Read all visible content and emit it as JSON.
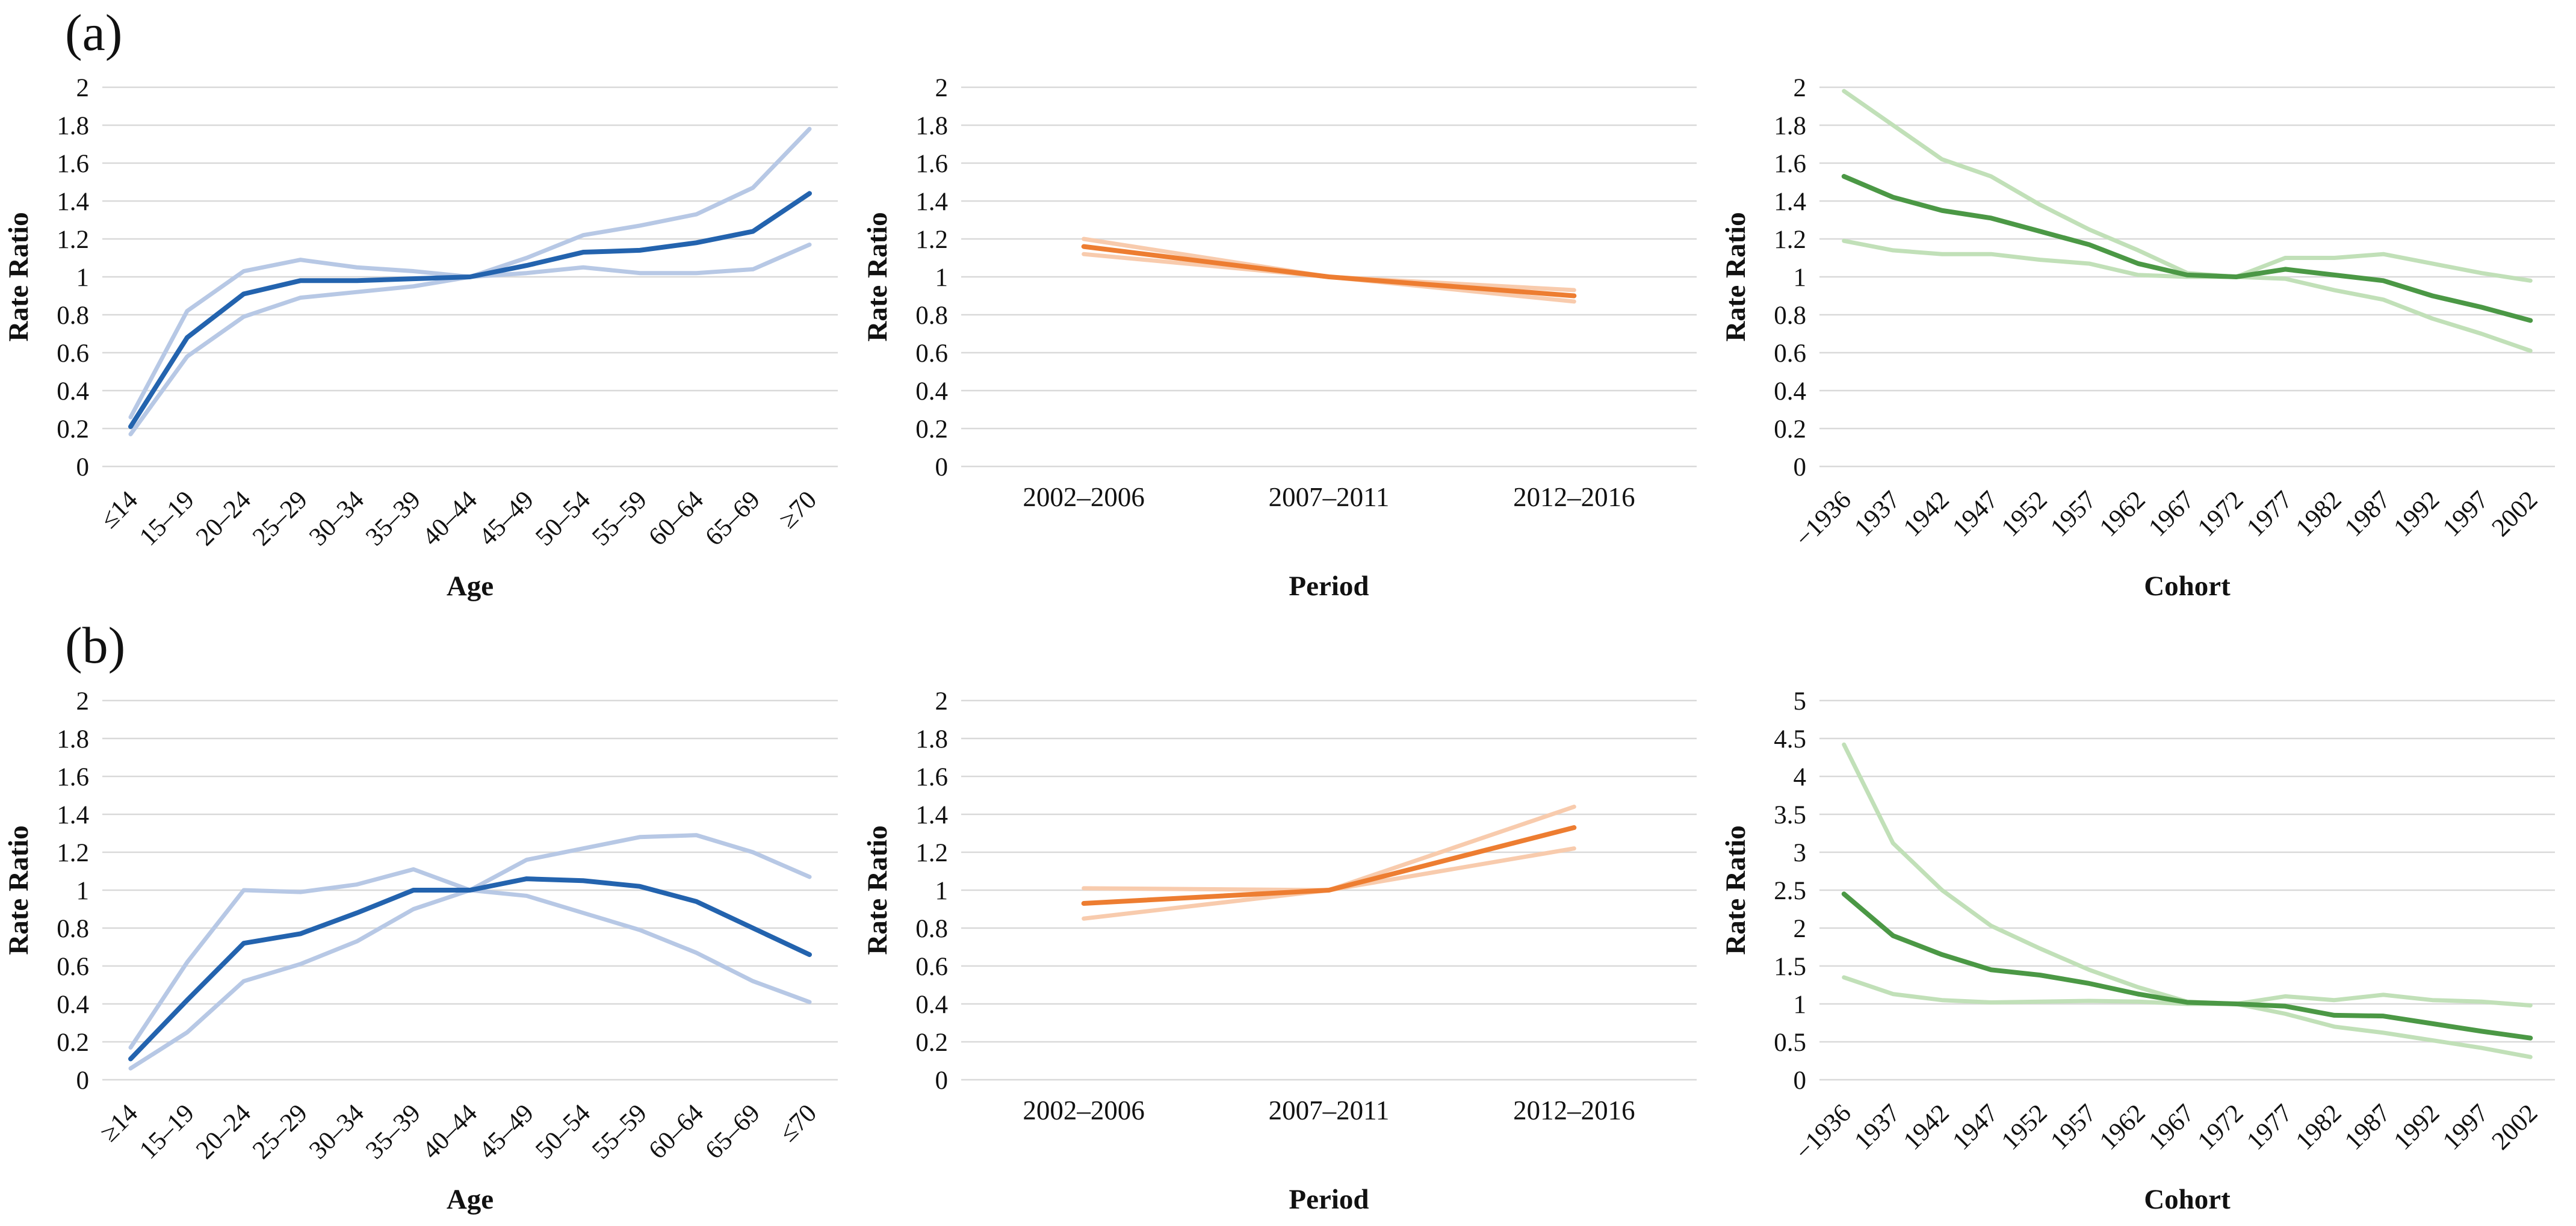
{
  "figure": {
    "panel_a_label": "(a)",
    "panel_b_label": "(b)"
  },
  "colors": {
    "grid": "#D9D9D9",
    "text": "#111111",
    "blue_estimate": "#2363AE",
    "blue_ci": "#B7C8E5",
    "orange_estimate": "#ED7D31",
    "orange_ci": "#F8CBAD",
    "green_estimate": "#4B9845",
    "green_ci": "#C1E0B8"
  },
  "chart_data": [
    {
      "id": "a-age",
      "panel": "a",
      "type": "line",
      "title": "",
      "xlabel": "Age",
      "ylabel": "Rate Ratio",
      "ylim": [
        0,
        2
      ],
      "ytick_labels": [
        "0",
        "0.2",
        "0.4",
        "0.6",
        "0.8",
        "1",
        "1.2",
        "1.4",
        "1.6",
        "1.8",
        "2"
      ],
      "grid": true,
      "legend_position": "none",
      "xtick_rotate": true,
      "categories": [
        "≤14",
        "15–19",
        "20–24",
        "25–29",
        "30–34",
        "35–39",
        "40–44",
        "45–49",
        "50–54",
        "55–59",
        "60–64",
        "65–69",
        "≥70"
      ],
      "palette": {
        "estimate": "#2363AE",
        "ci": "#B7C8E5"
      },
      "series": [
        {
          "name": "upper-ci",
          "role": "ci",
          "values": [
            0.26,
            0.82,
            1.03,
            1.09,
            1.05,
            1.03,
            1.0,
            1.1,
            1.22,
            1.27,
            1.33,
            1.47,
            1.78
          ]
        },
        {
          "name": "lower-ci",
          "role": "ci",
          "values": [
            0.17,
            0.58,
            0.79,
            0.89,
            0.92,
            0.95,
            1.0,
            1.02,
            1.05,
            1.02,
            1.02,
            1.04,
            1.17
          ]
        },
        {
          "name": "estimate",
          "role": "estimate",
          "values": [
            0.21,
            0.68,
            0.91,
            0.98,
            0.98,
            0.99,
            1.0,
            1.06,
            1.13,
            1.14,
            1.18,
            1.24,
            1.44
          ]
        }
      ]
    },
    {
      "id": "a-period",
      "panel": "a",
      "type": "line",
      "title": "",
      "xlabel": "Period",
      "ylabel": "Rate Ratio",
      "ylim": [
        0,
        2
      ],
      "ytick_labels": [
        "0",
        "0.2",
        "0.4",
        "0.6",
        "0.8",
        "1",
        "1.2",
        "1.4",
        "1.6",
        "1.8",
        "2"
      ],
      "grid": true,
      "legend_position": "none",
      "xtick_rotate": false,
      "categories": [
        "2002–2006",
        "2007–2011",
        "2012–2016"
      ],
      "palette": {
        "estimate": "#ED7D31",
        "ci": "#F8CBAD"
      },
      "series": [
        {
          "name": "upper-ci",
          "role": "ci",
          "values": [
            1.2,
            1.0,
            0.93
          ]
        },
        {
          "name": "lower-ci",
          "role": "ci",
          "values": [
            1.12,
            1.0,
            0.87
          ]
        },
        {
          "name": "estimate",
          "role": "estimate",
          "values": [
            1.16,
            1.0,
            0.9
          ]
        }
      ]
    },
    {
      "id": "a-cohort",
      "panel": "a",
      "type": "line",
      "title": "",
      "xlabel": "Cohort",
      "ylabel": "Rate Ratio",
      "ylim": [
        0,
        2
      ],
      "ytick_labels": [
        "0",
        "0.2",
        "0.4",
        "0.6",
        "0.8",
        "1",
        "1.2",
        "1.4",
        "1.6",
        "1.8",
        "2"
      ],
      "grid": true,
      "legend_position": "none",
      "xtick_rotate": true,
      "categories": [
        "−1936",
        "1937",
        "1942",
        "1947",
        "1952",
        "1957",
        "1962",
        "1967",
        "1972",
        "1977",
        "1982",
        "1987",
        "1992",
        "1997",
        "2002"
      ],
      "palette": {
        "estimate": "#4B9845",
        "ci": "#C1E0B8"
      },
      "series": [
        {
          "name": "upper-ci",
          "role": "ci",
          "values": [
            1.98,
            1.8,
            1.62,
            1.53,
            1.38,
            1.25,
            1.14,
            1.02,
            1.0,
            1.1,
            1.1,
            1.12,
            1.07,
            1.02,
            0.98
          ]
        },
        {
          "name": "lower-ci",
          "role": "ci",
          "values": [
            1.19,
            1.14,
            1.12,
            1.12,
            1.09,
            1.07,
            1.01,
            1.0,
            1.0,
            0.99,
            0.93,
            0.88,
            0.78,
            0.7,
            0.61
          ]
        },
        {
          "name": "estimate",
          "role": "estimate",
          "values": [
            1.53,
            1.42,
            1.35,
            1.31,
            1.24,
            1.17,
            1.07,
            1.01,
            1.0,
            1.04,
            1.01,
            0.98,
            0.9,
            0.84,
            0.77
          ]
        }
      ]
    },
    {
      "id": "b-age",
      "panel": "b",
      "type": "line",
      "title": "",
      "xlabel": "Age",
      "ylabel": "Rate Ratio",
      "ylim": [
        0,
        2
      ],
      "ytick_labels": [
        "0",
        "0.2",
        "0.4",
        "0.6",
        "0.8",
        "1",
        "1.2",
        "1.4",
        "1.6",
        "1.8",
        "2"
      ],
      "grid": true,
      "legend_position": "none",
      "xtick_rotate": true,
      "categories": [
        "≥14",
        "15–19",
        "20–24",
        "25–29",
        "30–34",
        "35–39",
        "40–44",
        "45–49",
        "50–54",
        "55–59",
        "60–64",
        "65–69",
        "≤70"
      ],
      "palette": {
        "estimate": "#2363AE",
        "ci": "#B7C8E5"
      },
      "series": [
        {
          "name": "upper-ci",
          "role": "ci",
          "values": [
            0.17,
            0.62,
            1.0,
            0.99,
            1.03,
            1.11,
            1.0,
            1.16,
            1.22,
            1.28,
            1.29,
            1.2,
            1.07
          ]
        },
        {
          "name": "lower-ci",
          "role": "ci",
          "values": [
            0.06,
            0.25,
            0.52,
            0.61,
            0.73,
            0.9,
            1.0,
            0.97,
            0.88,
            0.79,
            0.67,
            0.52,
            0.41
          ]
        },
        {
          "name": "estimate",
          "role": "estimate",
          "values": [
            0.11,
            0.42,
            0.72,
            0.77,
            0.88,
            1.0,
            1.0,
            1.06,
            1.05,
            1.02,
            0.94,
            0.8,
            0.66
          ]
        }
      ]
    },
    {
      "id": "b-period",
      "panel": "b",
      "type": "line",
      "title": "",
      "xlabel": "Period",
      "ylabel": "Rate Ratio",
      "ylim": [
        0,
        2
      ],
      "ytick_labels": [
        "0",
        "0.2",
        "0.4",
        "0.6",
        "0.8",
        "1",
        "1.2",
        "1.4",
        "1.6",
        "1.8",
        "2"
      ],
      "grid": true,
      "legend_position": "none",
      "xtick_rotate": false,
      "categories": [
        "2002–2006",
        "2007–2011",
        "2012–2016"
      ],
      "palette": {
        "estimate": "#ED7D31",
        "ci": "#F8CBAD"
      },
      "series": [
        {
          "name": "upper-ci",
          "role": "ci",
          "values": [
            1.01,
            1.0,
            1.44
          ]
        },
        {
          "name": "lower-ci",
          "role": "ci",
          "values": [
            0.85,
            1.0,
            1.22
          ]
        },
        {
          "name": "estimate",
          "role": "estimate",
          "values": [
            0.93,
            1.0,
            1.33
          ]
        }
      ]
    },
    {
      "id": "b-cohort",
      "panel": "b",
      "type": "line",
      "title": "",
      "xlabel": "Cohort",
      "ylabel": "Rate Ratio",
      "ylim": [
        0,
        5
      ],
      "ytick_labels": [
        "0",
        "0.5",
        "1",
        "1.5",
        "2",
        "2.5",
        "3",
        "3.5",
        "4",
        "4.5",
        "5"
      ],
      "grid": true,
      "legend_position": "none",
      "xtick_rotate": true,
      "categories": [
        "−1936",
        "1937",
        "1942",
        "1947",
        "1952",
        "1957",
        "1962",
        "1967",
        "1972",
        "1977",
        "1982",
        "1987",
        "1992",
        "1997",
        "2002"
      ],
      "palette": {
        "estimate": "#4B9845",
        "ci": "#C1E0B8"
      },
      "series": [
        {
          "name": "upper-ci",
          "role": "ci",
          "values": [
            4.42,
            3.12,
            2.5,
            2.03,
            1.73,
            1.45,
            1.22,
            1.03,
            1.0,
            1.1,
            1.05,
            1.12,
            1.05,
            1.03,
            0.98
          ]
        },
        {
          "name": "lower-ci",
          "role": "ci",
          "values": [
            1.35,
            1.13,
            1.05,
            1.02,
            1.03,
            1.04,
            1.03,
            1.0,
            1.0,
            0.87,
            0.7,
            0.62,
            0.52,
            0.42,
            0.3
          ]
        },
        {
          "name": "estimate",
          "role": "estimate",
          "values": [
            2.45,
            1.9,
            1.65,
            1.45,
            1.38,
            1.27,
            1.13,
            1.02,
            1.0,
            0.97,
            0.85,
            0.84,
            0.74,
            0.64,
            0.55
          ]
        }
      ]
    }
  ]
}
